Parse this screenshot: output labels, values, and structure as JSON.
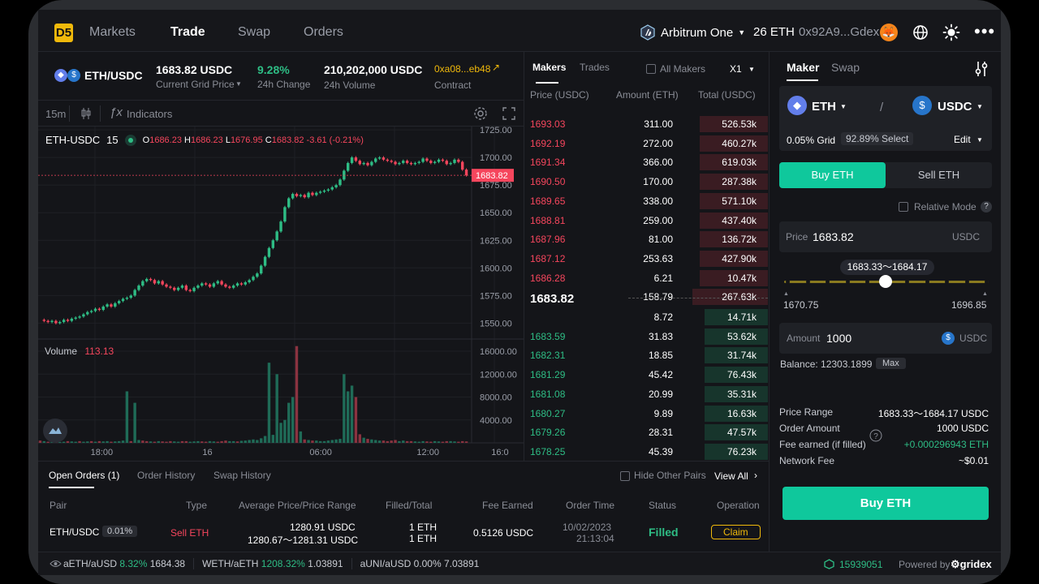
{
  "nav": {
    "logo": "D5",
    "items": [
      "Markets",
      "Trade",
      "Swap",
      "Orders"
    ],
    "network": "Arbitrum One",
    "balance": "26 ETH",
    "address": "0x92A9...Gdex"
  },
  "pair": {
    "name": "ETH/USDC",
    "price": "1683.82 USDC",
    "price_label": "Current Grid Price",
    "change": "9.28%",
    "change_label": "24h Change",
    "volume": "210,202,000 USDC",
    "volume_label": "24h Volume",
    "contract": "0xa08...eb48",
    "contract_label": "Contract"
  },
  "chart_toolbar": {
    "interval": "15m",
    "indicators": "Indicators"
  },
  "chart": {
    "symbol": "ETH-USDC",
    "interval": "15",
    "ohlc": {
      "o_label": "O",
      "o": "1686.23",
      "h_label": "H",
      "h": "1686.23",
      "l_label": "L",
      "l": "1676.95",
      "c_label": "C",
      "c": "1683.82",
      "chg": "-3.61 (-0.21%)"
    },
    "last_price_label": "1683.82",
    "price_ticks": [
      "1725.00",
      "1700.00",
      "1675.00",
      "1650.00",
      "1625.00",
      "1600.00",
      "1575.00",
      "1550.00"
    ],
    "volume_label": "Volume",
    "volume_value": "113.13",
    "volume_ticks": [
      "16000.00",
      "12000.00",
      "8000.00",
      "4000.00"
    ],
    "time_ticks": [
      "18:00",
      "16",
      "06:00",
      "12:00",
      "16:0"
    ]
  },
  "chart_data": {
    "type": "candlestick",
    "ylim": [
      1540,
      1728
    ],
    "close_series": [
      1553,
      1552,
      1551,
      1552,
      1550,
      1551,
      1553,
      1552,
      1554,
      1555,
      1556,
      1558,
      1560,
      1561,
      1563,
      1562,
      1565,
      1567,
      1565,
      1568,
      1570,
      1572,
      1573,
      1575,
      1580,
      1584,
      1588,
      1590,
      1589,
      1586,
      1588,
      1585,
      1583,
      1582,
      1580,
      1582,
      1584,
      1580,
      1579,
      1582,
      1584,
      1586,
      1585,
      1583,
      1586,
      1588,
      1585,
      1583,
      1582,
      1584,
      1586,
      1585,
      1587,
      1589,
      1592,
      1595,
      1602,
      1610,
      1618,
      1625,
      1633,
      1642,
      1655,
      1663,
      1667,
      1665,
      1666,
      1664,
      1668,
      1666,
      1668,
      1669,
      1670,
      1671,
      1673,
      1675,
      1680,
      1688,
      1695,
      1700,
      1697,
      1694,
      1695,
      1693,
      1696,
      1699,
      1700,
      1698,
      1697,
      1696,
      1694,
      1695,
      1697,
      1695,
      1694,
      1695,
      1696,
      1699,
      1697,
      1695,
      1696,
      1698,
      1697,
      1694,
      1695,
      1698,
      1696,
      1689,
      1683.82
    ],
    "volume_ylim": [
      0,
      17000
    ],
    "volume": [
      400,
      300,
      200,
      300,
      200,
      150,
      200,
      300,
      250,
      200,
      300,
      200,
      250,
      300,
      200,
      300,
      250,
      300,
      200,
      250,
      300,
      400,
      9000,
      300,
      7000,
      500,
      400,
      300,
      250,
      200,
      300,
      250,
      200,
      300,
      250,
      200,
      300,
      300,
      200,
      250,
      300,
      250,
      200,
      300,
      250,
      200,
      300,
      400,
      300,
      300,
      250,
      350,
      400,
      500,
      600,
      500,
      800,
      1200,
      14000,
      1400,
      12000,
      3500,
      4000,
      7000,
      8000,
      16900,
      2000,
      600,
      500,
      400,
      400,
      300,
      300,
      400,
      500,
      600,
      700,
      12000,
      9000,
      10000,
      8000,
      1500,
      900,
      700,
      600,
      500,
      400,
      400,
      300,
      400,
      500,
      300,
      400,
      300,
      300,
      250,
      200,
      300,
      250,
      200,
      300,
      250,
      200,
      300,
      300,
      250,
      200,
      300,
      250
    ],
    "volume_up": [
      false,
      true,
      false,
      true,
      false,
      true,
      true,
      false,
      true,
      true,
      false,
      true,
      true,
      false,
      true,
      false,
      true,
      true,
      false,
      true,
      true,
      true,
      true,
      false,
      true,
      true,
      false,
      false,
      true,
      false,
      true,
      false,
      false,
      false,
      true,
      true,
      false,
      false,
      true,
      true,
      true,
      false,
      false,
      true,
      true,
      false,
      false,
      false,
      true,
      true,
      false,
      true,
      true,
      true,
      true,
      true,
      true,
      true,
      true,
      true,
      true,
      true,
      true,
      true,
      true,
      false,
      true,
      false,
      true,
      false,
      true,
      true,
      true,
      true,
      true,
      true,
      true,
      true,
      true,
      true,
      false,
      false,
      true,
      false,
      true,
      true,
      true,
      false,
      false,
      false,
      false,
      true,
      true,
      false,
      false,
      true,
      true,
      true,
      false,
      false,
      true,
      true,
      false,
      false,
      true,
      true,
      false,
      false,
      false
    ]
  },
  "orderbook": {
    "tabs": [
      "Makers",
      "Trades"
    ],
    "all_makers": "All Makers",
    "multiplier": "X1",
    "headers": [
      "Price (USDC)",
      "Amount (ETH)",
      "Total (USDC)"
    ],
    "asks": [
      {
        "price": "1693.03",
        "amount": "311.00",
        "total": "526.53k",
        "depth": 0.28
      },
      {
        "price": "1692.19",
        "amount": "272.00",
        "total": "460.27k",
        "depth": 0.28
      },
      {
        "price": "1691.34",
        "amount": "366.00",
        "total": "619.03k",
        "depth": 0.28
      },
      {
        "price": "1690.50",
        "amount": "170.00",
        "total": "287.38k",
        "depth": 0.28
      },
      {
        "price": "1689.65",
        "amount": "338.00",
        "total": "571.10k",
        "depth": 0.28
      },
      {
        "price": "1688.81",
        "amount": "259.00",
        "total": "437.40k",
        "depth": 0.28
      },
      {
        "price": "1687.96",
        "amount": "81.00",
        "total": "136.72k",
        "depth": 0.28
      },
      {
        "price": "1687.12",
        "amount": "253.63",
        "total": "427.90k",
        "depth": 0.28
      },
      {
        "price": "1686.28",
        "amount": "6.21",
        "total": "10.47k",
        "depth": 0.28
      },
      {
        "price": "",
        "amount": "158.79",
        "total": "267.63k",
        "depth": 0.31
      }
    ],
    "mid_price": "1683.82",
    "bids": [
      {
        "price": "",
        "amount": "8.72",
        "total": "14.71k",
        "depth": 0.26
      },
      {
        "price": "1683.59",
        "amount": "31.83",
        "total": "53.62k",
        "depth": 0.26
      },
      {
        "price": "1682.31",
        "amount": "18.85",
        "total": "31.74k",
        "depth": 0.26
      },
      {
        "price": "1681.29",
        "amount": "45.42",
        "total": "76.43k",
        "depth": 0.26
      },
      {
        "price": "1681.08",
        "amount": "20.99",
        "total": "35.31k",
        "depth": 0.26
      },
      {
        "price": "1680.27",
        "amount": "9.89",
        "total": "16.63k",
        "depth": 0.26
      },
      {
        "price": "1679.26",
        "amount": "28.31",
        "total": "47.57k",
        "depth": 0.26
      },
      {
        "price": "1678.25",
        "amount": "45.39",
        "total": "76.23k",
        "depth": 0.26
      }
    ]
  },
  "maker": {
    "tabs": [
      "Maker",
      "Swap"
    ],
    "base": "ETH",
    "quote": "USDC",
    "separator": "/",
    "grid": "0.05% Grid",
    "select": "92.89% Select",
    "edit": "Edit",
    "buy_tab": "Buy ETH",
    "sell_tab": "Sell ETH",
    "relative_mode": "Relative Mode",
    "help": "?",
    "price_label": "Price",
    "price_value": "1683.82",
    "price_unit": "USDC",
    "range_label": "1683.33～1684.17",
    "slider_min": "1670.75",
    "slider_max": "1696.85",
    "slider_position": 0.5,
    "amount_label": "Amount",
    "amount_value": "1000",
    "amount_unit": "USDC",
    "balance": "Balance: 12303.1899",
    "max": "Max",
    "summary": [
      {
        "label": "Price Range",
        "value": "1683.33～1684.17 USDC"
      },
      {
        "label": "Order Amount",
        "value": "1000 USDC"
      },
      {
        "label": "Fee earned (if filled)",
        "value": "+0.000296943 ETH"
      },
      {
        "label": "Network Fee",
        "value": "~$0.01"
      }
    ],
    "submit": "Buy ETH"
  },
  "orders": {
    "tabs": [
      "Open Orders (1)",
      "Order History",
      "Swap History"
    ],
    "hide_pairs": "Hide Other Pairs",
    "view_all": "View All",
    "headers": [
      "Pair",
      "Type",
      "Average Price/Price Range",
      "Filled/Total",
      "Fee Earned",
      "Order Time",
      "Status",
      "Operation"
    ],
    "row": {
      "pair": "ETH/USDC",
      "fee_tier": "0.01%",
      "type": "Sell ETH",
      "avg_price": "1280.91 USDC",
      "range": "1280.67～1281.31 USDC",
      "filled": "1 ETH",
      "total": "1 ETH",
      "fee": "0.5126 USDC",
      "date": "10/02/2023",
      "time": "21:13:04",
      "status": "Filled",
      "operation": "Claim"
    }
  },
  "footer": {
    "tickers": [
      {
        "pair": "aETH/aUSD",
        "change": "8.32%",
        "price": "1684.38"
      },
      {
        "pair": "WETH/aETH",
        "change": "1208.32%",
        "price": "1.03891"
      },
      {
        "pair": "aUNI/aUSD",
        "change": "0.00%",
        "price": "7.03891"
      }
    ],
    "block": "15939051",
    "powered": "Powered by",
    "brand": "gridex"
  }
}
